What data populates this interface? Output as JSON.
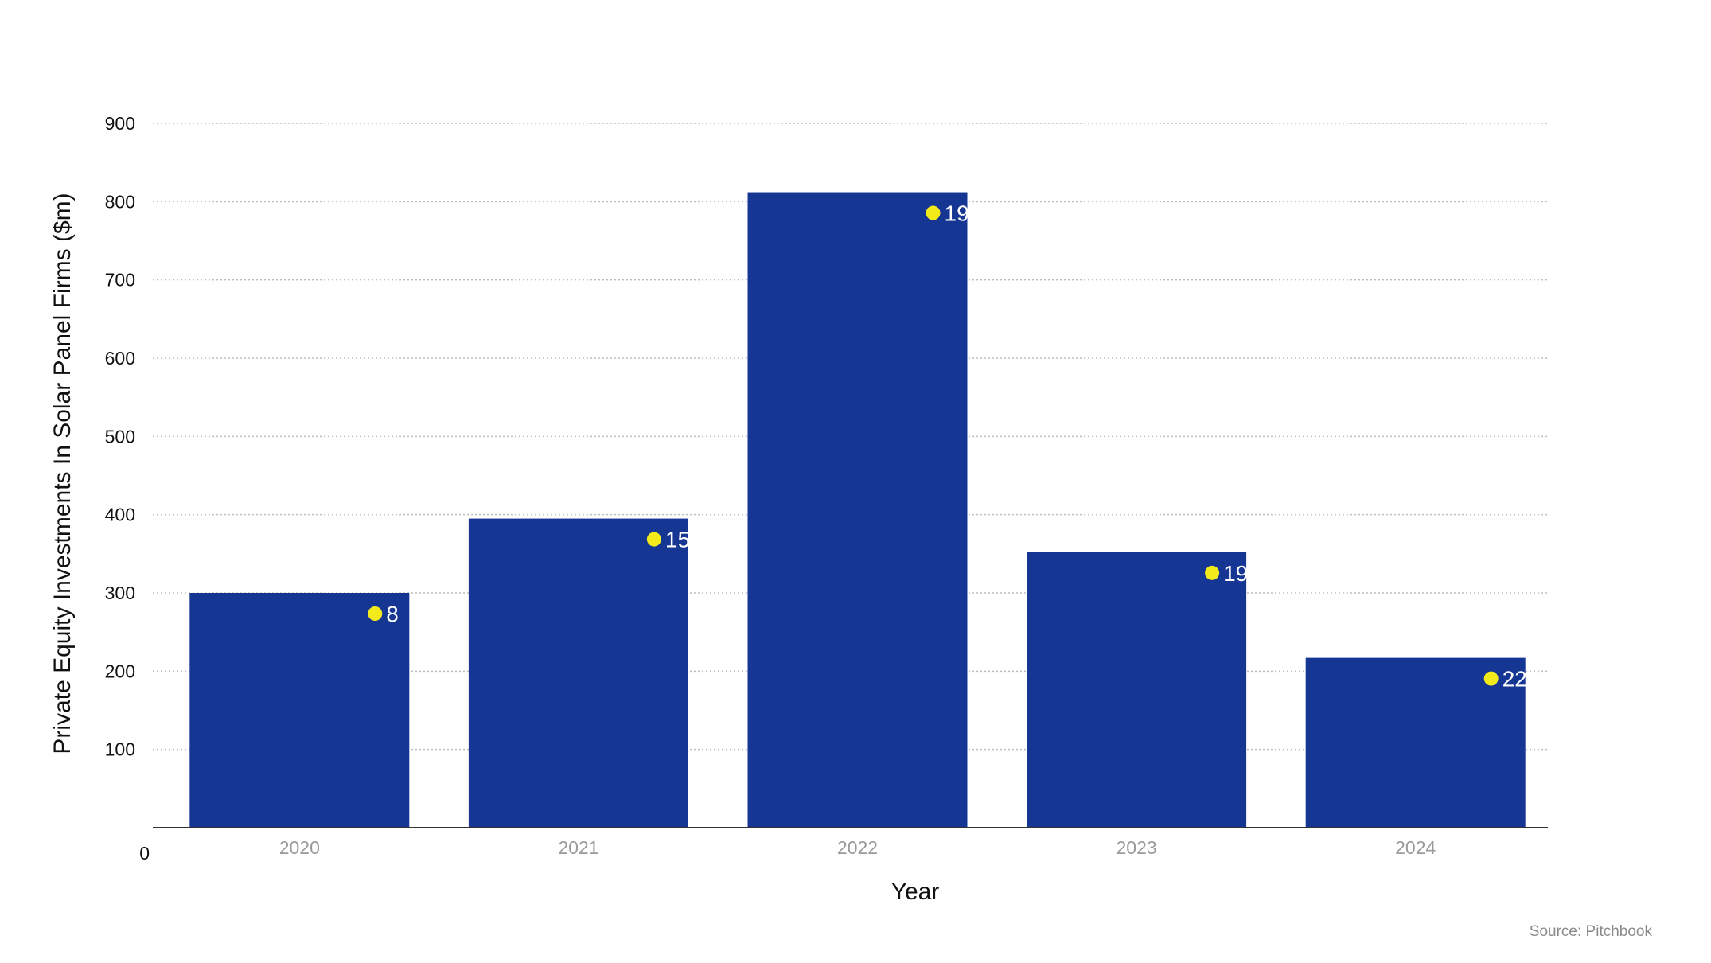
{
  "chart_data": {
    "type": "bar",
    "title": "",
    "xlabel": "Year",
    "ylabel": "Private Equity Investments In Solar Panel Firms ($m)",
    "categories": [
      "2020",
      "2021",
      "2022",
      "2023",
      "2024"
    ],
    "values": [
      300,
      395,
      812,
      352,
      217
    ],
    "deal_counts": [
      "8",
      "15",
      "19",
      "19",
      "22"
    ],
    "ylim": [
      0,
      900
    ],
    "yticks": [
      "0",
      "100",
      "200",
      "300",
      "400",
      "500",
      "600",
      "700",
      "800",
      "900"
    ],
    "grid": true,
    "legend": "none",
    "source": "Source: Pitchbook",
    "colors": {
      "bar": "#163694",
      "marker": "#f2ea1a",
      "grid": "#bdbdbd",
      "axis": "#333333"
    }
  }
}
